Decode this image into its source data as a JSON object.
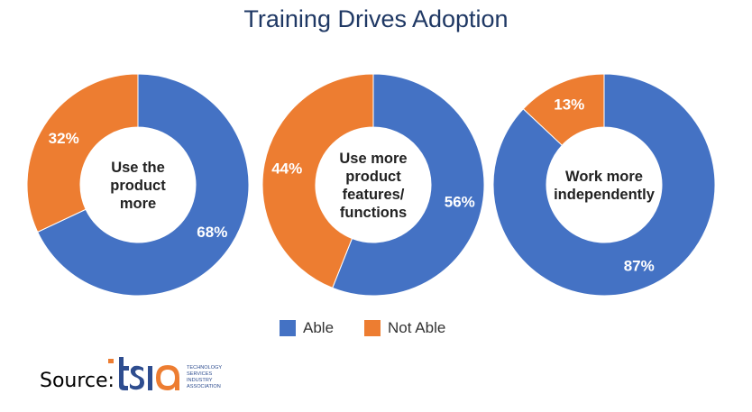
{
  "title": "Training Drives Adoption",
  "colors": {
    "able": "#4472c4",
    "not_able": "#ed7d31"
  },
  "chart_data": [
    {
      "type": "pie",
      "style": "donut",
      "center_label": [
        "Use the",
        "product",
        "more"
      ],
      "slices": [
        {
          "name": "Able",
          "value": 68,
          "label": "68%"
        },
        {
          "name": "Not Able",
          "value": 32,
          "label": "32%"
        }
      ]
    },
    {
      "type": "pie",
      "style": "donut",
      "center_label": [
        "Use more",
        "product",
        "features/",
        "functions"
      ],
      "slices": [
        {
          "name": "Able",
          "value": 56,
          "label": "56%"
        },
        {
          "name": "Not Able",
          "value": 44,
          "label": "44%"
        }
      ]
    },
    {
      "type": "pie",
      "style": "donut",
      "center_label": [
        "Work more",
        "independently"
      ],
      "slices": [
        {
          "name": "Able",
          "value": 87,
          "label": "87%"
        },
        {
          "name": "Not Able",
          "value": 13,
          "label": "13%"
        }
      ]
    }
  ],
  "legend": {
    "able": "Able",
    "not_able": "Not Able"
  },
  "source": {
    "label": "Source:",
    "logo_text": "tsia",
    "logo_caption": [
      "TECHNOLOGY",
      "SERVICES",
      "INDUSTRY",
      "ASSOCIATION"
    ]
  }
}
